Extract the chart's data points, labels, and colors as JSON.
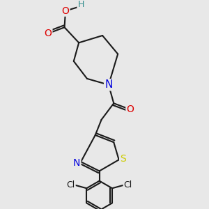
{
  "background_color": "#e8e8e8",
  "atom_colors": {
    "C": "#1a1a1a",
    "H": "#2e8b8b",
    "O": "#dd0000",
    "N": "#0000dd",
    "S": "#cccc00",
    "Cl": "#1a1a1a"
  },
  "bond_color": "#1a1a1a",
  "bond_width": 1.5,
  "font_size_atoms": 10,
  "figsize": [
    3.0,
    3.0
  ],
  "dpi": 100
}
